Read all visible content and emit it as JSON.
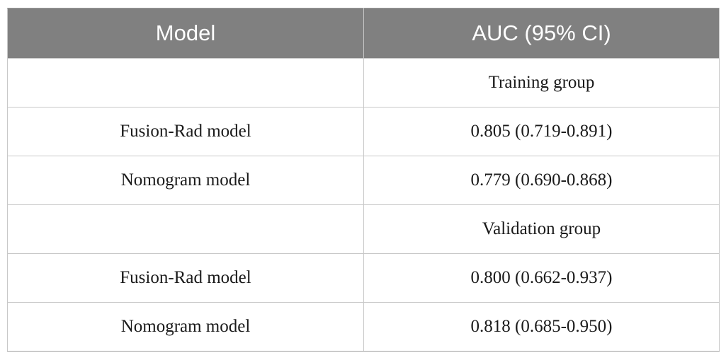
{
  "table": {
    "headers": [
      "Model",
      "AUC (95% CI)"
    ],
    "rows": [
      [
        "",
        "Training group"
      ],
      [
        "Fusion-Rad model",
        "0.805 (0.719-0.891)"
      ],
      [
        "Nomogram model",
        "0.779 (0.690-0.868)"
      ],
      [
        "",
        "Validation group"
      ],
      [
        "Fusion-Rad model",
        "0.800 (0.662-0.937)"
      ],
      [
        "Nomogram model",
        "0.818 (0.685-0.950)"
      ]
    ]
  }
}
